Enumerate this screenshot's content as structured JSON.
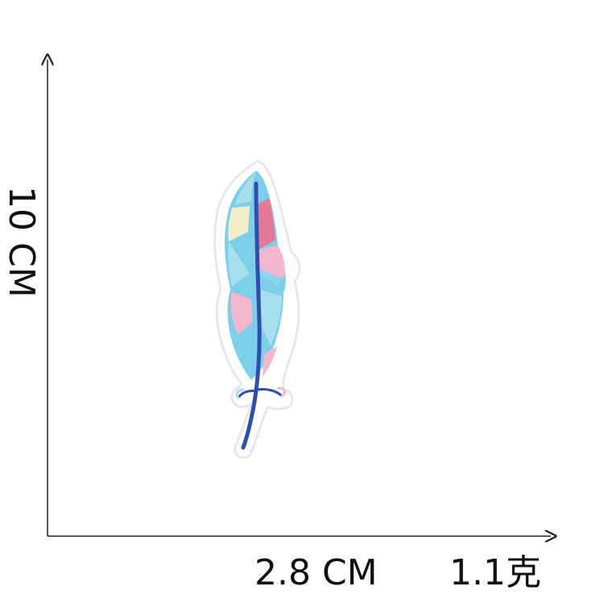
{
  "image": {
    "subject": "feather-embroidered-patch",
    "background_color": "#ffffff"
  },
  "dimensions": {
    "height_label": "10 CM",
    "width_label": "2.8 CM",
    "weight_label": "1.1克"
  },
  "colors": {
    "axis": "#222222",
    "patch_border": "#ffffff",
    "patch_outline": "#e8e6ee",
    "shaft": "#2f4fb0",
    "blue": "#7ccfe8",
    "light_blue": "#a6e0ef",
    "pink": "#f2b7cf",
    "deep_pink": "#e67896",
    "cream": "#f3edc9"
  }
}
